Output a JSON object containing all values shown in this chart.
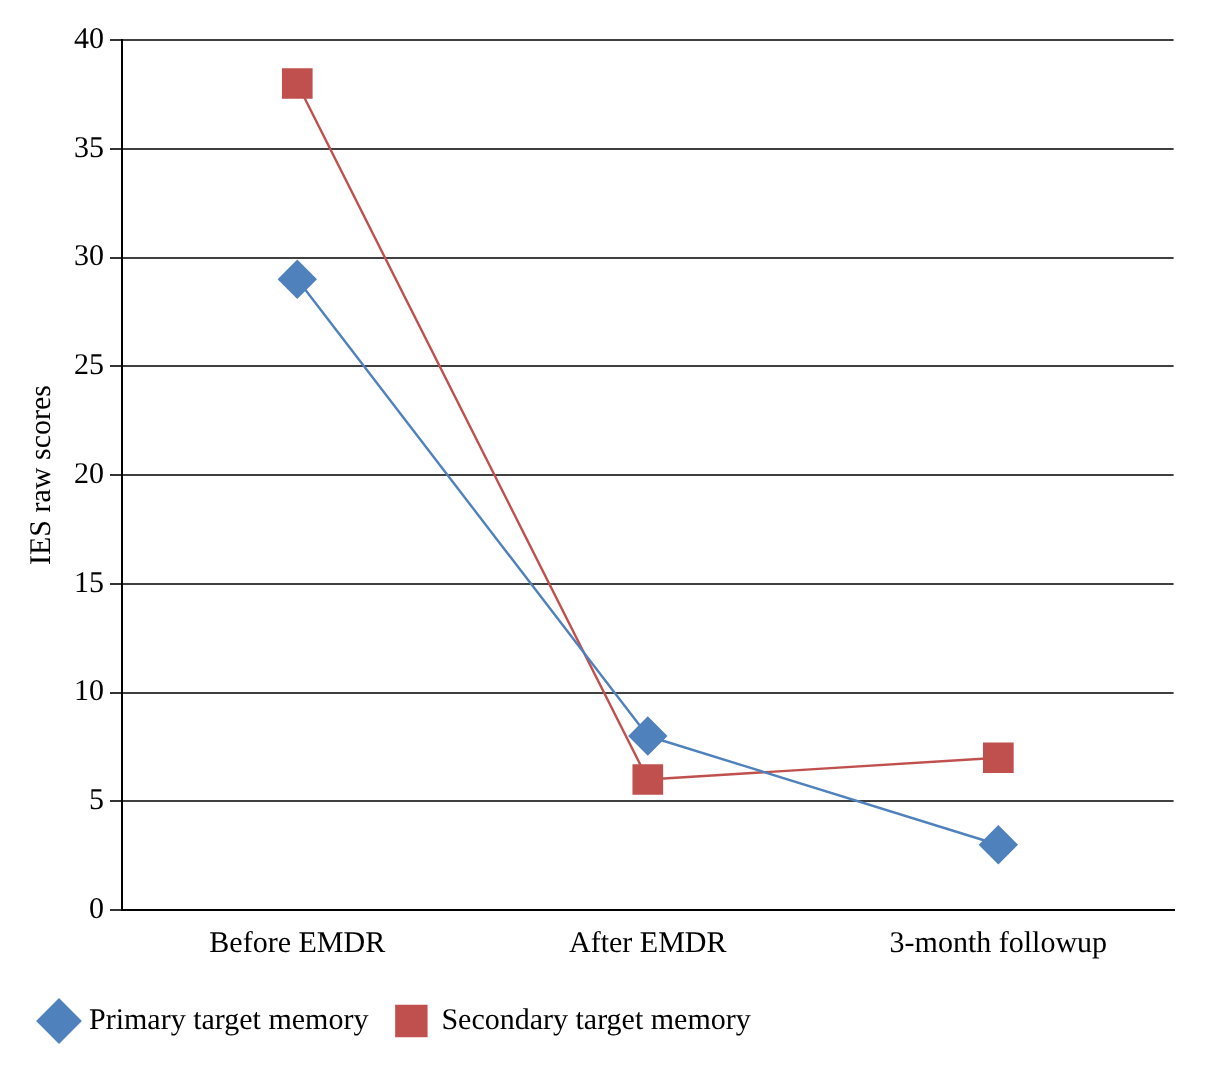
{
  "chart_data": {
    "type": "line",
    "ylabel": "IES raw scores",
    "categories": [
      "Before EMDR",
      "After EMDR",
      "3-month followup"
    ],
    "series": [
      {
        "name": "Primary target memory",
        "color": "#4f81bd",
        "values": [
          29,
          8,
          3
        ],
        "marker": "diamond"
      },
      {
        "name": "Secondary target memory",
        "color": "#c0504d",
        "values": [
          38,
          6,
          7
        ],
        "marker": "square"
      }
    ],
    "ylim": [
      0,
      40
    ],
    "yticks": [
      0,
      5,
      10,
      15,
      20,
      25,
      30,
      35,
      40
    ],
    "grid": "y",
    "legend": "bottom left",
    "line_style": "solid"
  }
}
